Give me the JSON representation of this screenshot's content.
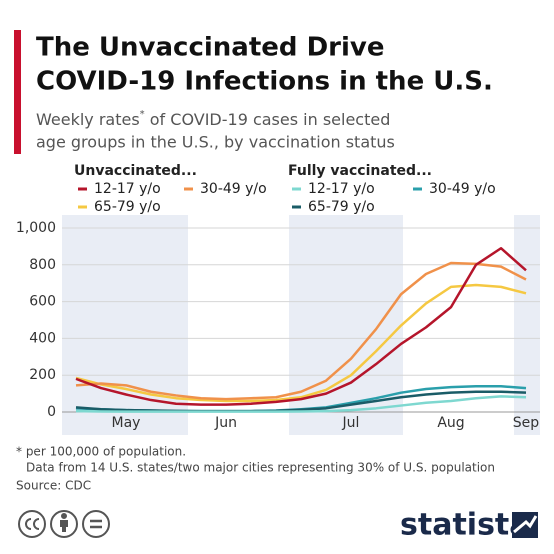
{
  "chart_data": {
    "type": "line",
    "title": [
      "The Unvaccinated Drive",
      "COVID-19 Infections in the U.S."
    ],
    "subtitle": [
      "Weekly rates",
      "*",
      " of COVID-19 cases in selected",
      "age groups in the U.S., by vaccination status"
    ],
    "legend_groups": [
      "Unvaccinated...",
      "Fully vaccinated..."
    ],
    "categories": [
      null,
      null,
      "May",
      null,
      null,
      null,
      "Jun",
      null,
      null,
      null,
      null,
      "Jul",
      null,
      null,
      null,
      "Aug",
      null,
      null,
      "Sep"
    ],
    "series": [
      {
        "name": "12-17 y/o",
        "group": 0,
        "color": "#b5152b",
        "values": [
          180,
          130,
          95,
          65,
          45,
          40,
          40,
          45,
          55,
          70,
          100,
          160,
          260,
          370,
          460,
          570,
          800,
          890,
          770
        ]
      },
      {
        "name": "30-49 y/o",
        "group": 0,
        "color": "#f0914a",
        "values": [
          145,
          155,
          145,
          110,
          90,
          75,
          70,
          75,
          80,
          110,
          170,
          290,
          450,
          640,
          750,
          810,
          805,
          790,
          720
        ]
      },
      {
        "name": "65-79 y/o",
        "group": 0,
        "color": "#f5c842",
        "values": [
          185,
          150,
          125,
          95,
          75,
          65,
          60,
          60,
          65,
          80,
          120,
          200,
          330,
          470,
          590,
          680,
          690,
          680,
          645
        ]
      },
      {
        "name": "12-17 y/o",
        "group": 1,
        "color": "#7ed8d0",
        "values": [
          5,
          3,
          2,
          2,
          2,
          2,
          2,
          2,
          2,
          3,
          5,
          10,
          20,
          35,
          50,
          60,
          75,
          85,
          80
        ]
      },
      {
        "name": "30-49 y/o",
        "group": 1,
        "color": "#2a9fab",
        "values": [
          20,
          15,
          10,
          8,
          5,
          5,
          5,
          5,
          8,
          15,
          25,
          50,
          75,
          105,
          125,
          135,
          140,
          140,
          130
        ]
      },
      {
        "name": "65-79 y/o",
        "group": 1,
        "color": "#1a5c67",
        "values": [
          25,
          15,
          10,
          8,
          6,
          5,
          5,
          5,
          6,
          12,
          20,
          40,
          60,
          80,
          95,
          105,
          110,
          110,
          105
        ]
      }
    ],
    "ylim": [
      0,
      1000
    ],
    "yticks": [
      0,
      200,
      400,
      600,
      800,
      {
        "value": 1000,
        "label": "1,000"
      }
    ],
    "grid": true,
    "notes": [
      "* per 100,000 of population.",
      "Data from 14 U.S. states/two major cities representing 30% of U.S. population",
      "Source: CDC"
    ],
    "brand": "statista"
  }
}
